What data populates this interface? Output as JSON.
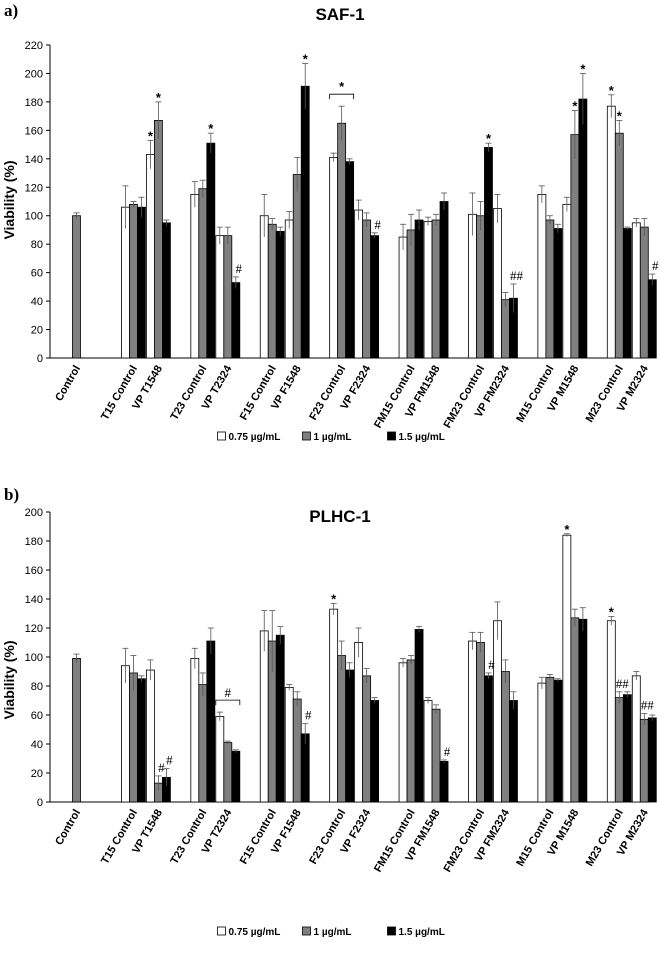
{
  "chart_data": [
    {
      "type": "bar",
      "panel_label": "a)",
      "title": "SAF-1",
      "ylabel": "Viability (%)",
      "xlabel": "",
      "ylim": [
        0,
        220
      ],
      "yticks": [
        0,
        20,
        40,
        60,
        80,
        100,
        120,
        140,
        160,
        180,
        200,
        220
      ],
      "categories": [
        "Control",
        "T15 Control",
        "VP T1548",
        "T23 Control",
        "VP T2324",
        "F15 Control",
        "VP F1548",
        "F23 Control",
        "VP F2324",
        "FM15 Control",
        "VP FM1548",
        "FM23 Control",
        "VP FM2324",
        "M15 Control",
        "VP M1548",
        "M23 Control",
        "VP M2324"
      ],
      "series": [
        {
          "name": "0.75 µg/mL",
          "color": "#ffffff",
          "values": [
            null,
            106,
            143,
            115,
            86,
            100,
            97,
            141,
            104,
            85,
            96,
            101,
            105,
            115,
            108,
            177,
            95
          ],
          "errors": [
            null,
            15,
            10,
            9,
            6,
            15,
            6,
            3,
            7,
            9,
            3,
            15,
            10,
            6,
            5,
            8,
            3
          ]
        },
        {
          "name": "1 µg/mL",
          "color": "#808080",
          "values": [
            100,
            108,
            167,
            119,
            86,
            94,
            129,
            165,
            97,
            90,
            97,
            100,
            41,
            97,
            157,
            158,
            92
          ],
          "errors": [
            2,
            2,
            13,
            6,
            6,
            4,
            12,
            12,
            5,
            11,
            4,
            10,
            5,
            3,
            17,
            9,
            6
          ]
        },
        {
          "name": "1.5 µg/mL",
          "color": "#000000",
          "values": [
            null,
            106,
            95,
            151,
            53,
            89,
            191,
            138,
            86,
            97,
            110,
            148,
            42,
            91,
            182,
            91,
            55
          ],
          "errors": [
            null,
            7,
            2,
            7,
            4,
            3,
            16,
            2,
            2,
            7,
            6,
            3,
            10,
            3,
            18,
            1,
            4
          ]
        }
      ],
      "annotations": [
        {
          "text": "*",
          "category": "VP T1548",
          "series": "0.75 µg/mL"
        },
        {
          "text": "*",
          "category": "VP T1548",
          "series": "1 µg/mL"
        },
        {
          "text": "*",
          "category": "T23 Control",
          "series": "1.5 µg/mL"
        },
        {
          "text": "#",
          "category": "VP T2324",
          "series": "1.5 µg/mL"
        },
        {
          "text": "*",
          "category": "VP F1548",
          "series": "1.5 µg/mL"
        },
        {
          "text": "*",
          "category": "F23 Control",
          "series": "bracket"
        },
        {
          "text": "#",
          "category": "VP F2324",
          "series": "1.5 µg/mL"
        },
        {
          "text": "*",
          "category": "FM23 Control",
          "series": "1.5 µg/mL"
        },
        {
          "text": "##",
          "category": "VP FM2324",
          "series": "1.5 µg/mL"
        },
        {
          "text": "*",
          "category": "VP M1548",
          "series": "1 µg/mL"
        },
        {
          "text": "*",
          "category": "VP M1548",
          "series": "1.5 µg/mL"
        },
        {
          "text": "*",
          "category": "M23 Control",
          "series": "0.75 µg/mL"
        },
        {
          "text": "*",
          "category": "M23 Control",
          "series": "1 µg/mL"
        },
        {
          "text": "#",
          "category": "VP M2324",
          "series": "1.5 µg/mL"
        }
      ],
      "legend": [
        "0.75 µg/mL",
        "1 µg/mL",
        "1.5 µg/mL"
      ],
      "legend_position": "bottom-center",
      "grid": false
    },
    {
      "type": "bar",
      "panel_label": "b)",
      "title": "PLHC-1",
      "ylabel": "Viability (%)",
      "xlabel": "",
      "ylim": [
        0,
        200
      ],
      "yticks": [
        0,
        20,
        40,
        60,
        80,
        100,
        120,
        140,
        160,
        180,
        200
      ],
      "categories": [
        "Control",
        "T15 Control",
        "VP T1548",
        "T23 Control",
        "VP T2324",
        "F15 Control",
        "VP F1548",
        "F23 Control",
        "VP F2324",
        "FM15 Control",
        "VP FM1548",
        "FM23 Control",
        "VP FM2324",
        "M15 Control",
        "VP M1548",
        "M23 Control",
        "VP M2324"
      ],
      "series": [
        {
          "name": "0.75 µg/mL",
          "color": "#ffffff",
          "values": [
            null,
            94,
            91,
            99,
            59,
            118,
            79,
            133,
            110,
            96,
            70,
            111,
            125,
            82,
            184,
            125,
            87
          ],
          "errors": [
            null,
            12,
            7,
            7,
            3,
            14,
            2,
            4,
            10,
            3,
            2,
            6,
            13,
            4,
            1,
            3,
            3
          ]
        },
        {
          "name": "1 µg/mL",
          "color": "#808080",
          "values": [
            99,
            89,
            13,
            81,
            41,
            111,
            71,
            101,
            87,
            98,
            64,
            110,
            90,
            86,
            127,
            72,
            57
          ],
          "errors": [
            3,
            12,
            5,
            8,
            1,
            21,
            5,
            10,
            5,
            3,
            3,
            7,
            8,
            2,
            6,
            4,
            4
          ]
        },
        {
          "name": "1.5 µg/mL",
          "color": "#000000",
          "values": [
            null,
            85,
            17,
            111,
            35,
            115,
            47,
            91,
            70,
            119,
            28,
            87,
            70,
            84,
            126,
            74,
            58
          ],
          "errors": [
            null,
            2,
            6,
            9,
            1,
            6,
            7,
            5,
            2,
            2,
            1,
            2,
            6,
            1,
            8,
            2,
            2
          ]
        }
      ],
      "annotations": [
        {
          "text": "#",
          "category": "VP T1548",
          "series": "1 µg/mL"
        },
        {
          "text": "#",
          "category": "VP T1548",
          "series": "1.5 µg/mL"
        },
        {
          "text": "#",
          "category": "VP T2324",
          "series": "bracket"
        },
        {
          "text": "#",
          "category": "VP F1548",
          "series": "1.5 µg/mL"
        },
        {
          "text": "*",
          "category": "F23 Control",
          "series": "0.75 µg/mL"
        },
        {
          "text": "#",
          "category": "VP FM1548",
          "series": "1.5 µg/mL"
        },
        {
          "text": "#",
          "category": "FM23 Control",
          "series": "1.5 µg/mL"
        },
        {
          "text": "*",
          "category": "VP M1548",
          "series": "0.75 µg/mL"
        },
        {
          "text": "*",
          "category": "M23 Control",
          "series": "0.75 µg/mL"
        },
        {
          "text": "##",
          "category": "M23 Control",
          "series": "1 µg/mL"
        },
        {
          "text": "##",
          "category": "VP M2324",
          "series": "1 µg/mL"
        }
      ],
      "legend": [
        "0.75 µg/mL",
        "1 µg/mL",
        "1.5 µg/mL"
      ],
      "legend_position": "bottom-center",
      "grid": false
    }
  ]
}
